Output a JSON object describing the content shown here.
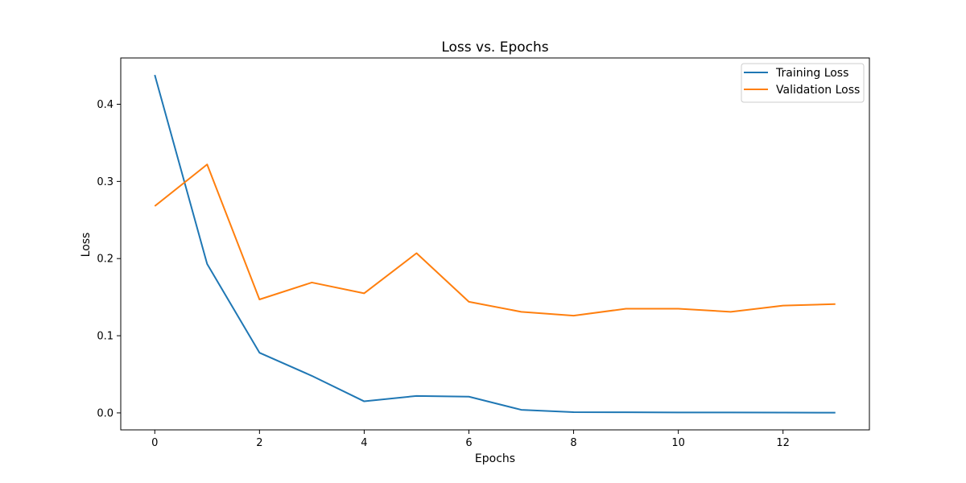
{
  "chart_data": {
    "type": "line",
    "title": "Loss vs. Epochs",
    "xlabel": "Epochs",
    "ylabel": "Loss",
    "xlim": [
      -0.65,
      13.65
    ],
    "ylim": [
      -0.022,
      0.46
    ],
    "xticks": [
      0,
      2,
      4,
      6,
      8,
      10,
      12
    ],
    "yticks": [
      0.0,
      0.1,
      0.2,
      0.3,
      0.4
    ],
    "ytick_labels": [
      "0.0",
      "0.1",
      "0.2",
      "0.3",
      "0.4"
    ],
    "grid": false,
    "legend_position": "top-right",
    "x": [
      0,
      1,
      2,
      3,
      4,
      5,
      6,
      7,
      8,
      9,
      10,
      11,
      12,
      13
    ],
    "series": [
      {
        "name": "Training Loss",
        "color": "#1f77b4",
        "values": [
          0.438,
          0.193,
          0.078,
          0.048,
          0.015,
          0.022,
          0.021,
          0.004,
          0.001,
          0.0008,
          0.0006,
          0.0005,
          0.0004,
          0.0003
        ]
      },
      {
        "name": "Validation Loss",
        "color": "#ff7f0e",
        "values": [
          0.268,
          0.322,
          0.147,
          0.169,
          0.155,
          0.207,
          0.144,
          0.131,
          0.126,
          0.135,
          0.135,
          0.131,
          0.139,
          0.141
        ]
      }
    ]
  }
}
